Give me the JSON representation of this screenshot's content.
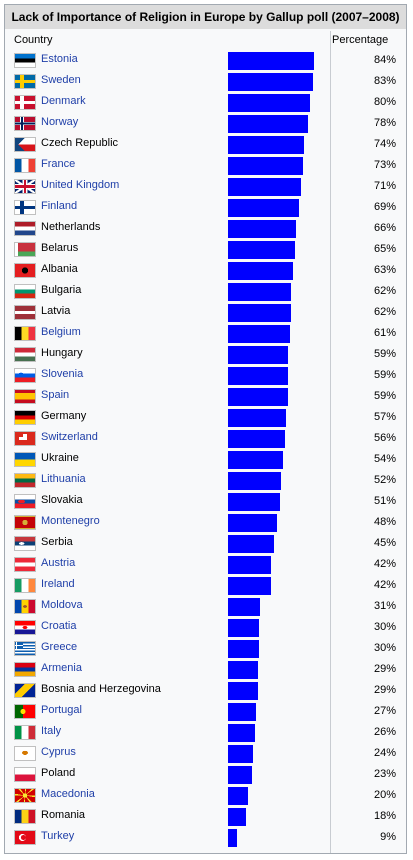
{
  "chart_data": {
    "type": "bar",
    "title": "Lack of Importance of Religion in Europe by Gallup poll (2007–2008)",
    "column_headers": {
      "country": "Country",
      "percentage": "Percentage"
    },
    "xlim": [
      0,
      100
    ],
    "bar_color": "#0000ff",
    "categories": [
      "Estonia",
      "Sweden",
      "Denmark",
      "Norway",
      "Czech Republic",
      "France",
      "United Kingdom",
      "Finland",
      "Netherlands",
      "Belarus",
      "Albania",
      "Bulgaria",
      "Latvia",
      "Belgium",
      "Hungary",
      "Slovenia",
      "Spain",
      "Germany",
      "Switzerland",
      "Ukraine",
      "Lithuania",
      "Slovakia",
      "Montenegro",
      "Serbia",
      "Austria",
      "Ireland",
      "Moldova",
      "Croatia",
      "Greece",
      "Armenia",
      "Bosnia and Herzegovina",
      "Portugal",
      "Italy",
      "Cyprus",
      "Poland",
      "Macedonia",
      "Romania",
      "Turkey"
    ],
    "values": [
      84,
      83,
      80,
      78,
      74,
      73,
      71,
      69,
      66,
      65,
      63,
      62,
      62,
      61,
      59,
      59,
      59,
      57,
      56,
      54,
      52,
      51,
      48,
      45,
      42,
      42,
      31,
      30,
      30,
      29,
      29,
      27,
      26,
      24,
      23,
      20,
      18,
      9
    ],
    "labels": [
      "84%",
      "83%",
      "80%",
      "78%",
      "74%",
      "73%",
      "71%",
      "69%",
      "66%",
      "65%",
      "63%",
      "62%",
      "62%",
      "61%",
      "59%",
      "59%",
      "59%",
      "57%",
      "56%",
      "54%",
      "52%",
      "51%",
      "48%",
      "45%",
      "42%",
      "42%",
      "31%",
      "30%",
      "30%",
      "29%",
      "29%",
      "27%",
      "26%",
      "24%",
      "23%",
      "20%",
      "18%",
      "9%"
    ],
    "flag_icons": [
      "estonia-flag",
      "sweden-flag",
      "denmark-flag",
      "norway-flag",
      "czech-republic-flag",
      "france-flag",
      "united-kingdom-flag",
      "finland-flag",
      "netherlands-flag",
      "belarus-flag",
      "albania-flag",
      "bulgaria-flag",
      "latvia-flag",
      "belgium-flag",
      "hungary-flag",
      "slovenia-flag",
      "spain-flag",
      "germany-flag",
      "switzerland-flag",
      "ukraine-flag",
      "lithuania-flag",
      "slovakia-flag",
      "montenegro-flag",
      "serbia-flag",
      "austria-flag",
      "ireland-flag",
      "moldova-flag",
      "croatia-flag",
      "greece-flag",
      "armenia-flag",
      "bosnia-and-herzegovina-flag",
      "portugal-flag",
      "italy-flag",
      "cyprus-flag",
      "poland-flag",
      "macedonia-flag",
      "romania-flag",
      "turkey-flag"
    ],
    "unlinked": [
      "Czech Republic",
      "Netherlands",
      "Belarus",
      "Albania",
      "Bulgaria",
      "Latvia",
      "Hungary",
      "Germany",
      "Ukraine",
      "Slovakia",
      "Serbia",
      "Bosnia and Herzegovina",
      "Poland",
      "Romania"
    ]
  }
}
